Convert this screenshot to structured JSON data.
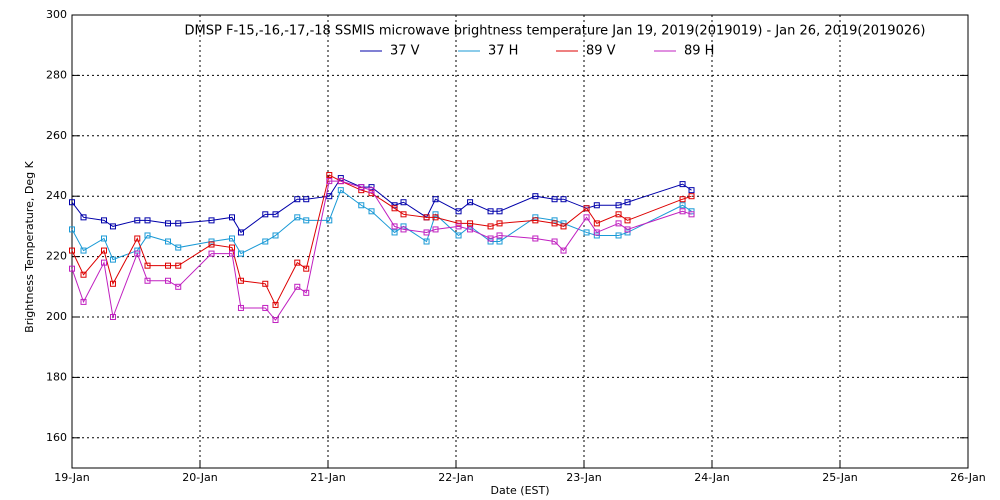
{
  "chart_data": {
    "type": "line",
    "title": "DMSP F-15,-16,-17,-18 SSMIS microwave brightness temperature Jan 19, 2019(2019019) - Jan 26, 2019(2019026)",
    "xlabel": "Date (EST)",
    "ylabel": "Brightness Temperature, Deg K",
    "x": [
      19.0,
      19.09,
      19.25,
      19.32,
      19.51,
      19.59,
      19.75,
      19.83,
      20.09,
      20.25,
      20.32,
      20.51,
      20.59,
      20.76,
      20.83,
      21.01,
      21.1,
      21.26,
      21.34,
      21.52,
      21.59,
      21.77,
      21.84,
      22.02,
      22.11,
      22.27,
      22.34,
      22.62,
      22.77,
      22.84,
      23.02,
      23.1,
      23.27,
      23.34,
      23.77,
      23.84
    ],
    "series": [
      {
        "name": "37 V",
        "color": "#0000aa",
        "values": [
          238,
          233,
          232,
          230,
          232,
          232,
          231,
          231,
          232,
          233,
          228,
          234,
          234,
          239,
          239,
          240,
          246,
          243,
          243,
          237,
          238,
          233,
          239,
          235,
          238,
          235,
          235,
          240,
          239,
          239,
          236,
          237,
          237,
          238,
          244,
          242
        ]
      },
      {
        "name": "37 H",
        "color": "#1a9ad6",
        "values": [
          229,
          222,
          226,
          219,
          222,
          227,
          225,
          223,
          225,
          226,
          221,
          225,
          227,
          233,
          232,
          232,
          242,
          237,
          235,
          228,
          230,
          225,
          234,
          227,
          230,
          225,
          225,
          233,
          232,
          231,
          228,
          227,
          227,
          228,
          237,
          235
        ]
      },
      {
        "name": "89 V",
        "color": "#dd0000",
        "values": [
          222,
          214,
          222,
          211,
          226,
          217,
          217,
          217,
          224,
          223,
          212,
          211,
          204,
          218,
          216,
          247,
          245,
          242,
          241,
          236,
          234,
          233,
          233,
          231,
          231,
          230,
          231,
          232,
          231,
          230,
          236,
          231,
          234,
          232,
          239,
          240
        ]
      },
      {
        "name": "89 H",
        "color": "#c020c0",
        "values": [
          216,
          205,
          218,
          200,
          221,
          212,
          212,
          210,
          221,
          221,
          203,
          203,
          199,
          210,
          208,
          245,
          245,
          243,
          242,
          230,
          229,
          228,
          229,
          230,
          229,
          226,
          227,
          226,
          225,
          222,
          233,
          228,
          231,
          229,
          235,
          234
        ]
      }
    ],
    "xlim": [
      19,
      26
    ],
    "xticks": [
      {
        "value": 19,
        "label": "19-Jan"
      },
      {
        "value": 20,
        "label": "20-Jan"
      },
      {
        "value": 21,
        "label": "21-Jan"
      },
      {
        "value": 22,
        "label": "22-Jan"
      },
      {
        "value": 23,
        "label": "23-Jan"
      },
      {
        "value": 24,
        "label": "24-Jan"
      },
      {
        "value": 25,
        "label": "25-Jan"
      },
      {
        "value": 26,
        "label": "26-Jan"
      }
    ],
    "ylim": [
      150,
      300
    ],
    "yticks": [
      160,
      180,
      200,
      220,
      240,
      260,
      280,
      300
    ],
    "grid": true,
    "legend": "top"
  }
}
